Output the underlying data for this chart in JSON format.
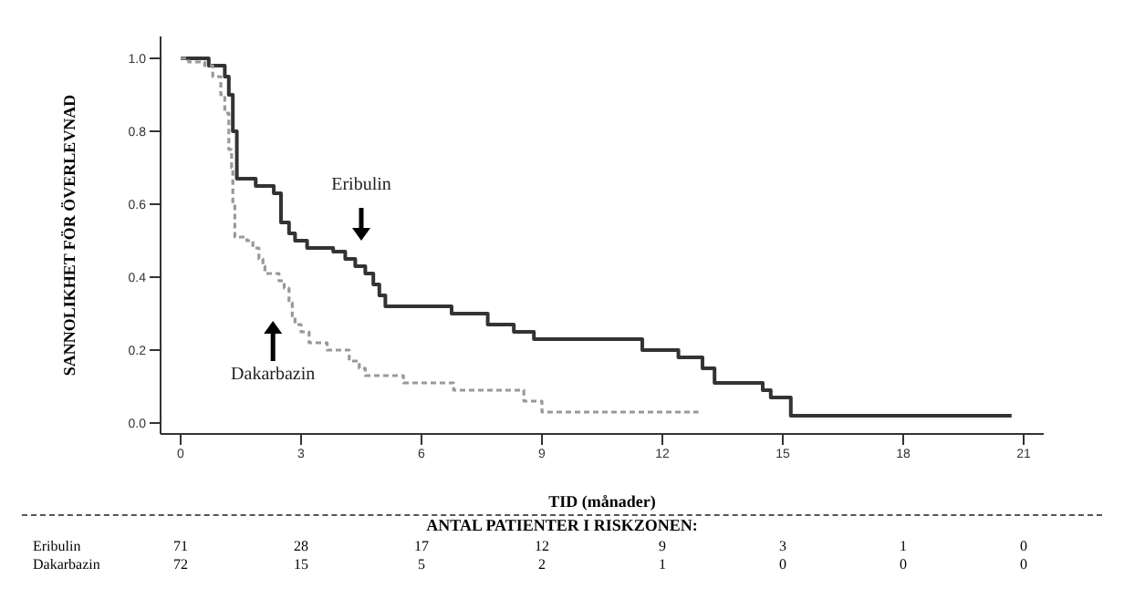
{
  "chart_data": {
    "type": "step",
    "xlabel": "TID (månader)",
    "ylabel": "SANNOLIKHET FÖR ÖVERLEVNAD",
    "xlim": [
      -0.5,
      21.5
    ],
    "xticks": [
      0,
      3,
      6,
      9,
      12,
      15,
      18,
      21
    ],
    "ylim": [
      -0.03,
      1.06
    ],
    "yticks": [
      {
        "value": 0,
        "label": "0.0"
      },
      {
        "value": 0.2,
        "label": "0.2"
      },
      {
        "value": 0.4,
        "label": "0.4"
      },
      {
        "value": 0.6,
        "label": "0.6"
      },
      {
        "value": 0.8,
        "label": "0.8"
      },
      {
        "value": 1,
        "label": "1.0"
      }
    ],
    "marker": "none",
    "series": [
      {
        "name": "Eribulin",
        "color": "#333333",
        "line_style": "solid",
        "x": [
          0,
          0.7,
          1.1,
          1.2,
          1.3,
          1.4,
          1.87,
          2.32,
          2.5,
          2.55,
          2.7,
          2.85,
          3.15,
          3.8,
          4.1,
          4.35,
          4.6,
          4.8,
          4.95,
          5.1,
          6.75,
          7.65,
          8.3,
          8.8,
          11.5,
          12.4,
          13.0,
          13.3,
          14.5,
          14.7,
          15.2,
          20.7
        ],
        "values": [
          1.0,
          0.98,
          0.95,
          0.9,
          0.8,
          0.67,
          0.65,
          0.63,
          0.55,
          0.55,
          0.52,
          0.5,
          0.48,
          0.47,
          0.45,
          0.43,
          0.41,
          0.38,
          0.35,
          0.32,
          0.3,
          0.27,
          0.25,
          0.23,
          0.2,
          0.18,
          0.15,
          0.11,
          0.09,
          0.07,
          0.02,
          0.02
        ]
      },
      {
        "name": "Dakarbazin",
        "color": "#999999",
        "line_style": "dashed",
        "x": [
          0,
          0.2,
          0.6,
          0.8,
          1.0,
          1.1,
          1.2,
          1.27,
          1.3,
          1.35,
          1.65,
          1.8,
          1.95,
          2.05,
          2.1,
          2.45,
          2.58,
          2.7,
          2.78,
          2.85,
          3.0,
          3.2,
          3.65,
          4.2,
          4.45,
          4.6,
          5.55,
          6.8,
          8.55,
          9.0,
          12.9
        ],
        "values": [
          1.0,
          0.99,
          0.98,
          0.95,
          0.9,
          0.85,
          0.75,
          0.7,
          0.6,
          0.51,
          0.5,
          0.48,
          0.45,
          0.43,
          0.41,
          0.39,
          0.37,
          0.33,
          0.29,
          0.27,
          0.25,
          0.22,
          0.2,
          0.17,
          0.15,
          0.13,
          0.11,
          0.09,
          0.06,
          0.03,
          0.03
        ]
      }
    ],
    "annotations": [
      "ANTAL PATIENTER I RISKZONEN:",
      "Eribulin",
      "71",
      "28",
      "17",
      "12",
      "9",
      "3",
      "1",
      "0",
      "Dakarbazin",
      "72",
      "15",
      "5",
      "2",
      "1",
      "0",
      "0",
      "0"
    ]
  }
}
